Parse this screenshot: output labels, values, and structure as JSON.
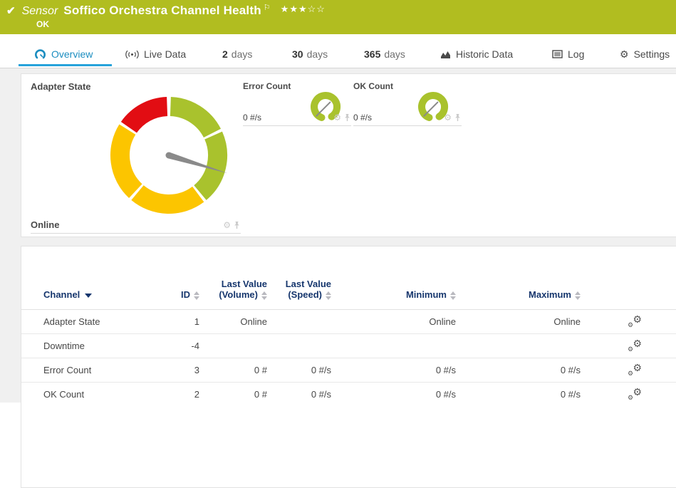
{
  "header": {
    "check": "✔",
    "kind": "Sensor",
    "title": "Soffico Orchestra Channel Health",
    "flag": "⚐",
    "stars_filled": "★★★",
    "stars_empty": "☆☆",
    "status": "OK",
    "bar_color": "#b1bd20"
  },
  "tabs": [
    {
      "num": "",
      "label": "Overview"
    },
    {
      "num": "",
      "label": "Live Data"
    },
    {
      "num": "2",
      "label": "days"
    },
    {
      "num": "30",
      "label": "days"
    },
    {
      "num": "365",
      "label": "days"
    },
    {
      "num": "",
      "label": "Historic Data"
    },
    {
      "num": "",
      "label": "Log"
    },
    {
      "num": "",
      "label": "Settings"
    }
  ],
  "accent": {
    "tab_blue": "#1b8dc0",
    "underline_blue": "#27a2da"
  },
  "chart_data": [
    {
      "type": "gauge",
      "title": "Adapter State",
      "current_value": "Online",
      "needle_angle_deg": 107,
      "segments": [
        {
          "from": 2,
          "to": 63,
          "color": "#a9c22d"
        },
        {
          "from": 66,
          "to": 140,
          "color": "#a9c22d"
        },
        {
          "from": 143,
          "to": 220,
          "color": "#fcc500"
        },
        {
          "from": 223,
          "to": 302,
          "color": "#fcc500"
        },
        {
          "from": 305,
          "to": 358,
          "color": "#e20d13"
        }
      ]
    },
    {
      "type": "gauge",
      "title": "Error Count",
      "current_value": "0 #/s",
      "needle_angle_deg": 45,
      "segments": [
        {
          "from": -160,
          "to": 148,
          "color": "#a9c22d"
        }
      ]
    },
    {
      "type": "gauge",
      "title": "OK Count",
      "current_value": "0 #/s",
      "needle_angle_deg": 45,
      "segments": [
        {
          "from": -160,
          "to": 148,
          "color": "#a9c22d"
        }
      ]
    }
  ],
  "table": {
    "columns": [
      {
        "label": "Channel"
      },
      {
        "label": "ID"
      },
      {
        "label": "Last Value",
        "label2": "(Volume)"
      },
      {
        "label": "Last Value",
        "label2": "(Speed)"
      },
      {
        "label": "Minimum"
      },
      {
        "label": "Maximum"
      }
    ],
    "rows": [
      [
        "Adapter State",
        "1",
        "Online",
        "",
        "Online",
        "Online"
      ],
      [
        "Downtime",
        "-4",
        "",
        "",
        "",
        ""
      ],
      [
        "Error Count",
        "3",
        "0 #",
        "0 #/s",
        "0 #/s",
        "0 #/s"
      ],
      [
        "OK Count",
        "2",
        "0 #",
        "0 #/s",
        "0 #/s",
        "0 #/s"
      ]
    ]
  }
}
